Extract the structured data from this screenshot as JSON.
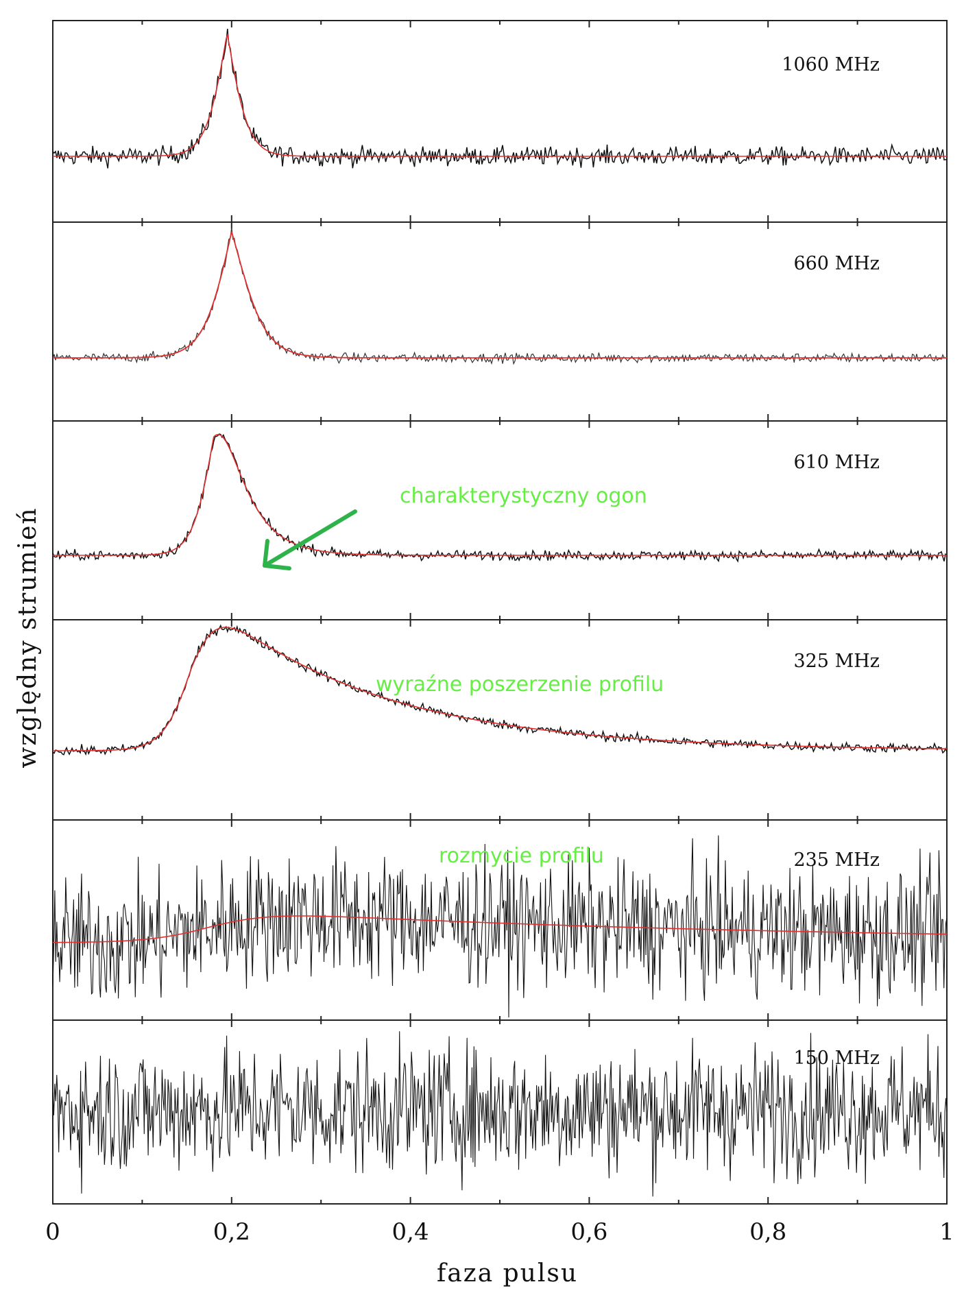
{
  "chart_data": {
    "type": "line",
    "xlabel": "faza pulsu",
    "ylabel": "względny strumień",
    "xlim": [
      0,
      1
    ],
    "x_ticks": [
      {
        "value": 0,
        "label": "0"
      },
      {
        "value": 0.2,
        "label": "0,2"
      },
      {
        "value": 0.4,
        "label": "0,4"
      },
      {
        "value": 0.6,
        "label": "0,6"
      },
      {
        "value": 0.8,
        "label": "0,8"
      },
      {
        "value": 1,
        "label": "1"
      }
    ],
    "series_colors": {
      "observed": "#111111",
      "model": "#e03030",
      "annotation": "#2db34a"
    },
    "panels": [
      {
        "frequency": "1060 MHz",
        "peak_phase": 0.195,
        "rise_width": 0.012,
        "tail_scale": 0.012,
        "peak_height": 0.8,
        "noise_level": 0.03,
        "annotation": ""
      },
      {
        "frequency": "660 MHz",
        "peak_phase": 0.2,
        "rise_width": 0.016,
        "tail_scale": 0.018,
        "peak_height": 0.8,
        "noise_level": 0.015,
        "annotation": ""
      },
      {
        "frequency": "610 MHz",
        "peak_phase": 0.18,
        "rise_width": 0.012,
        "tail_scale": 0.03,
        "peak_height": 0.75,
        "noise_level": 0.015,
        "annotation": "charakterystyczny ogon"
      },
      {
        "frequency": "325 MHz",
        "peak_phase": 0.155,
        "rise_width": 0.016,
        "tail_scale": 0.19,
        "peak_height": 0.8,
        "noise_level": 0.015,
        "annotation": "wyraźne poszerzenie profilu"
      },
      {
        "frequency": "235 MHz",
        "peak_phase": 0.18,
        "rise_width": 0.035,
        "tail_scale": 0.6,
        "peak_height": 0.15,
        "noise_level": 0.18,
        "annotation": "rozmycie profilu"
      },
      {
        "frequency": "150 MHz",
        "peak_phase": 0.2,
        "rise_width": 0.05,
        "tail_scale": 1.0,
        "peak_height": 0.0,
        "noise_level": 0.18,
        "annotation": ""
      }
    ]
  }
}
